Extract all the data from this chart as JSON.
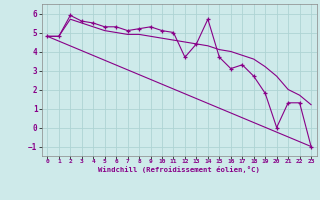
{
  "xlabel": "Windchill (Refroidissement éolien,°C)",
  "background_color": "#ceeaea",
  "grid_color": "#aed4d4",
  "line_color": "#880088",
  "xlim": [
    -0.5,
    23.5
  ],
  "ylim": [
    -1.5,
    6.5
  ],
  "yticks": [
    -1,
    0,
    1,
    2,
    3,
    4,
    5,
    6
  ],
  "xticks": [
    0,
    1,
    2,
    3,
    4,
    5,
    6,
    7,
    8,
    9,
    10,
    11,
    12,
    13,
    14,
    15,
    16,
    17,
    18,
    19,
    20,
    21,
    22,
    23
  ],
  "series1_x": [
    0,
    1,
    2,
    3,
    4,
    5,
    6,
    7,
    8,
    9,
    10,
    11,
    12,
    13,
    14,
    15,
    16,
    17,
    18,
    19,
    20,
    21,
    22,
    23
  ],
  "series1_y": [
    4.8,
    4.8,
    5.9,
    5.6,
    5.5,
    5.3,
    5.3,
    5.1,
    5.2,
    5.3,
    5.1,
    5.0,
    3.7,
    4.4,
    5.7,
    3.7,
    3.1,
    3.3,
    2.7,
    1.8,
    0.0,
    1.3,
    1.3,
    -1.0
  ],
  "series2_x": [
    0,
    1,
    2,
    3,
    4,
    5,
    6,
    7,
    8,
    9,
    10,
    11,
    12,
    13,
    14,
    15,
    16,
    17,
    18,
    19,
    20,
    21,
    22,
    23
  ],
  "series2_y": [
    4.8,
    4.8,
    5.7,
    5.5,
    5.3,
    5.1,
    5.0,
    4.9,
    4.9,
    4.8,
    4.7,
    4.6,
    4.5,
    4.4,
    4.3,
    4.1,
    4.0,
    3.8,
    3.6,
    3.2,
    2.7,
    2.0,
    1.7,
    1.2
  ],
  "series3_x": [
    0,
    23
  ],
  "series3_y": [
    4.8,
    -1.0
  ]
}
